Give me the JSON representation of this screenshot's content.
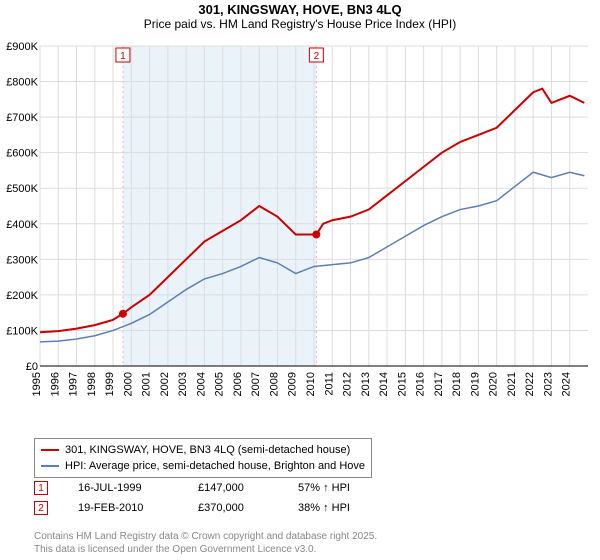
{
  "title": "301, KINGSWAY, HOVE, BN3 4LQ",
  "subtitle": "Price paid vs. HM Land Registry's House Price Index (HPI)",
  "chart": {
    "type": "line",
    "background_color": "#ffffff",
    "grid_color": "#dddddd",
    "axis_color": "#000000",
    "tick_font_size": 11,
    "x_years": [
      1995,
      1996,
      1997,
      1998,
      1999,
      2000,
      2001,
      2002,
      2003,
      2004,
      2005,
      2006,
      2007,
      2008,
      2009,
      2010,
      2011,
      2012,
      2013,
      2014,
      2015,
      2016,
      2017,
      2018,
      2019,
      2020,
      2021,
      2022,
      2023,
      2024
    ],
    "x_min": 1995,
    "x_max": 2025,
    "y_ticks": [
      0,
      100000,
      200000,
      300000,
      400000,
      500000,
      600000,
      700000,
      800000,
      900000
    ],
    "y_tick_labels": [
      "£0",
      "£100K",
      "£200K",
      "£300K",
      "£400K",
      "£500K",
      "£600K",
      "£700K",
      "£800K",
      "£900K"
    ],
    "y_min": 0,
    "y_max": 900000,
    "shaded_region": {
      "x_start": 1999.54,
      "x_end": 2010.13,
      "fill": "#eaf2fa"
    },
    "series": [
      {
        "name": "price_paid",
        "label": "301, KINGSWAY, HOVE, BN3 4LQ (semi-detached house)",
        "color": "#cc0000",
        "line_width": 2,
        "data": [
          [
            1995,
            95000
          ],
          [
            1996,
            98000
          ],
          [
            1997,
            105000
          ],
          [
            1998,
            115000
          ],
          [
            1999,
            130000
          ],
          [
            1999.54,
            147000
          ],
          [
            2000,
            165000
          ],
          [
            2001,
            200000
          ],
          [
            2002,
            250000
          ],
          [
            2003,
            300000
          ],
          [
            2004,
            350000
          ],
          [
            2005,
            380000
          ],
          [
            2006,
            410000
          ],
          [
            2007,
            450000
          ],
          [
            2008,
            420000
          ],
          [
            2009,
            370000
          ],
          [
            2010.13,
            370000
          ],
          [
            2010.5,
            400000
          ],
          [
            2011,
            410000
          ],
          [
            2012,
            420000
          ],
          [
            2013,
            440000
          ],
          [
            2014,
            480000
          ],
          [
            2015,
            520000
          ],
          [
            2016,
            560000
          ],
          [
            2017,
            600000
          ],
          [
            2018,
            630000
          ],
          [
            2019,
            650000
          ],
          [
            2020,
            670000
          ],
          [
            2021,
            720000
          ],
          [
            2022,
            770000
          ],
          [
            2022.5,
            780000
          ],
          [
            2023,
            740000
          ],
          [
            2024,
            760000
          ],
          [
            2024.8,
            740000
          ]
        ]
      },
      {
        "name": "hpi",
        "label": "HPI: Average price, semi-detached house, Brighton and Hove",
        "color": "#5b7fb4",
        "line_width": 1.5,
        "data": [
          [
            1995,
            68000
          ],
          [
            1996,
            70000
          ],
          [
            1997,
            76000
          ],
          [
            1998,
            85000
          ],
          [
            1999,
            100000
          ],
          [
            2000,
            120000
          ],
          [
            2001,
            145000
          ],
          [
            2002,
            180000
          ],
          [
            2003,
            215000
          ],
          [
            2004,
            245000
          ],
          [
            2005,
            260000
          ],
          [
            2006,
            280000
          ],
          [
            2007,
            305000
          ],
          [
            2008,
            290000
          ],
          [
            2009,
            260000
          ],
          [
            2010,
            280000
          ],
          [
            2011,
            285000
          ],
          [
            2012,
            290000
          ],
          [
            2013,
            305000
          ],
          [
            2014,
            335000
          ],
          [
            2015,
            365000
          ],
          [
            2016,
            395000
          ],
          [
            2017,
            420000
          ],
          [
            2018,
            440000
          ],
          [
            2019,
            450000
          ],
          [
            2020,
            465000
          ],
          [
            2021,
            505000
          ],
          [
            2022,
            545000
          ],
          [
            2023,
            530000
          ],
          [
            2024,
            545000
          ],
          [
            2024.8,
            535000
          ]
        ]
      }
    ],
    "sale_markers": [
      {
        "n": "1",
        "x": 1999.54,
        "y": 147000,
        "color": "#cc0000",
        "vline_color": "#f5b0b0"
      },
      {
        "n": "2",
        "x": 2010.13,
        "y": 370000,
        "color": "#cc0000",
        "vline_color": "#f5b0b0"
      }
    ]
  },
  "legend": {
    "items": [
      {
        "color": "#cc0000",
        "label": "301, KINGSWAY, HOVE, BN3 4LQ (semi-detached house)"
      },
      {
        "color": "#5b7fb4",
        "label": "HPI: Average price, semi-detached house, Brighton and Hove"
      }
    ]
  },
  "sales": [
    {
      "n": "1",
      "date": "16-JUL-1999",
      "price": "£147,000",
      "delta": "57% ↑ HPI",
      "color": "#cc0000"
    },
    {
      "n": "2",
      "date": "19-FEB-2010",
      "price": "£370,000",
      "delta": "38% ↑ HPI",
      "color": "#cc0000"
    }
  ],
  "footer_line1": "Contains HM Land Registry data © Crown copyright and database right 2025.",
  "footer_line2": "This data is licensed under the Open Government Licence v3.0."
}
